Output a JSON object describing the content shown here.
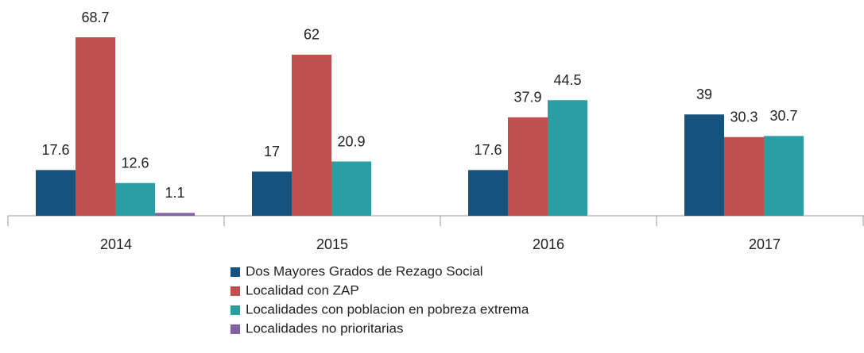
{
  "chart_data": {
    "type": "bar",
    "categories": [
      "2014",
      "2015",
      "2016",
      "2017"
    ],
    "series": [
      {
        "name": "Dos Mayores Grados de Rezago Social",
        "color": "#15527d",
        "values": [
          17.6,
          17,
          17.6,
          39
        ]
      },
      {
        "name": "Localidad con ZAP",
        "color": "#c0504d",
        "values": [
          68.7,
          62,
          37.9,
          30.3
        ]
      },
      {
        "name": "Localidades con poblacion en pobreza extrema",
        "color": "#2b9ea3",
        "values": [
          12.6,
          20.9,
          44.5,
          30.7
        ]
      },
      {
        "name": "Localidades no prioritarias",
        "color": "#8064a2",
        "values": [
          1.1,
          null,
          null,
          null
        ]
      }
    ]
  }
}
